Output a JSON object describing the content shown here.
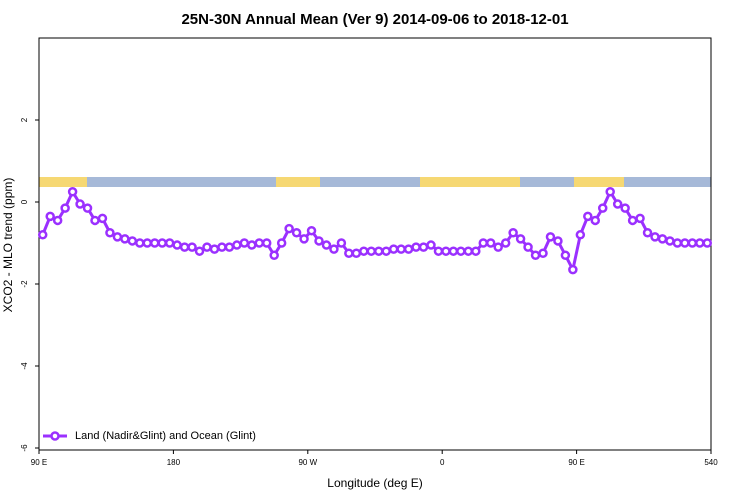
{
  "chart_data": {
    "type": "line",
    "title": "25N-30N Annual Mean (Ver 9)   2014-09-06 to 2018-12-01",
    "x_label": "Longitude (deg E)",
    "y_label": "XCO2 - MLO trend (ppm)",
    "x": [
      92.5,
      97.5,
      102.5,
      107.5,
      112.5,
      117.5,
      122.5,
      127.5,
      132.5,
      137.5,
      142.5,
      147.5,
      152.5,
      157.5,
      162.5,
      167.5,
      172.5,
      177.5,
      182.5,
      187.5,
      192.5,
      197.5,
      202.5,
      207.5,
      212.5,
      217.5,
      222.5,
      227.5,
      232.5,
      237.5,
      242.5,
      247.5,
      252.5,
      257.5,
      262.5,
      267.5,
      272.5,
      277.5,
      282.5,
      287.5,
      292.5,
      297.5,
      302.5,
      307.5,
      312.5,
      317.5,
      322.5,
      327.5,
      332.5,
      337.5,
      342.5,
      347.5,
      352.5,
      357.5,
      362.5,
      367.5,
      372.5,
      377.5,
      382.5,
      387.5,
      392.5,
      397.5,
      402.5,
      407.5,
      412.5,
      417.5,
      422.5,
      427.5,
      432.5,
      437.5,
      442.5,
      447.5,
      452.5,
      457.5,
      462.5,
      467.5,
      472.5,
      477.5,
      482.5,
      487.5,
      492.5,
      497.5,
      502.5,
      507.5,
      512.5,
      517.5,
      522.5,
      527.5,
      532.5,
      537.5
    ],
    "series": [
      {
        "name": "Land (Nadir&Glint) and Ocean (Glint)",
        "color": "#9b30ff",
        "values": [
          -0.8,
          -0.35,
          -0.45,
          -0.15,
          0.25,
          -0.05,
          -0.15,
          -0.45,
          -0.4,
          -0.75,
          -0.85,
          -0.9,
          -0.95,
          -1.0,
          -1.0,
          -1.0,
          -1.0,
          -1.0,
          -1.05,
          -1.1,
          -1.1,
          -1.2,
          -1.1,
          -1.15,
          -1.1,
          -1.1,
          -1.05,
          -1.0,
          -1.05,
          -1.0,
          -1.0,
          -1.3,
          -1.0,
          -0.65,
          -0.75,
          -0.9,
          -0.7,
          -0.95,
          -1.05,
          -1.15,
          -1.0,
          -1.25,
          -1.25,
          -1.2,
          -1.2,
          -1.2,
          -1.2,
          -1.15,
          -1.15,
          -1.15,
          -1.1,
          -1.1,
          -1.05,
          -1.2,
          -1.2,
          -1.2,
          -1.2,
          -1.2,
          -1.2,
          -1.0,
          -1.0,
          -1.1,
          -1.0,
          -0.75,
          -0.9,
          -1.1,
          -1.3,
          -1.25,
          -0.85,
          -0.95,
          -1.3,
          -1.65,
          -0.8,
          -0.35,
          -0.45,
          -0.15,
          0.25,
          -0.05,
          -0.15,
          -0.45,
          -0.4,
          -0.75,
          -0.85,
          -0.9,
          -0.95,
          -1.0,
          -1.0,
          -1.0,
          -1.0,
          -1.0
        ]
      }
    ],
    "xlim": [
      90,
      540
    ],
    "xticks": [
      {
        "value": 90,
        "label": "90 E"
      },
      180,
      {
        "value": 270,
        "label": "90 W"
      },
      {
        "value": 360,
        "label": "0"
      },
      {
        "value": 450,
        "label": "90 E"
      },
      540
    ],
    "ylim": [
      -6,
      4
    ],
    "yticks": [
      -6,
      -4,
      -2,
      0,
      2
    ],
    "legend": "bottom left",
    "grid": false
  }
}
